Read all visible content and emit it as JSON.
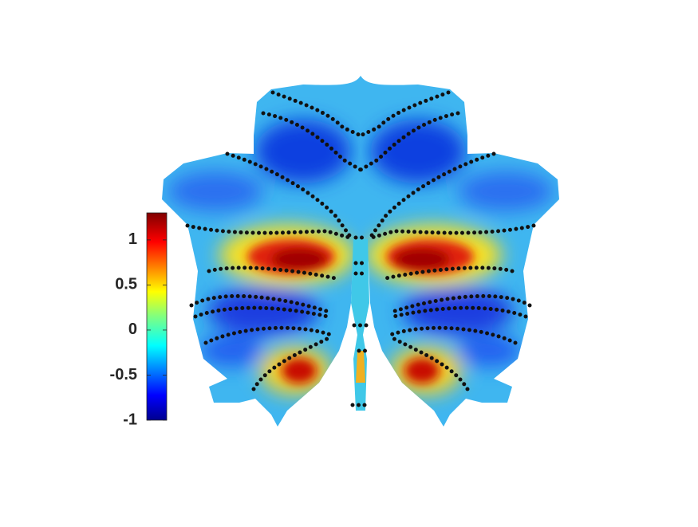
{
  "chart_data": {
    "type": "colorbar",
    "clim": [
      -1,
      1.3
    ],
    "yticks": [
      -1,
      -0.5,
      0,
      0.5,
      1
    ]
  }
}
